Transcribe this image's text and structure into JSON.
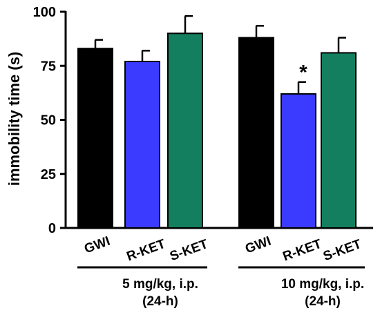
{
  "chart_data": {
    "type": "bar",
    "title": "",
    "xlabel": "",
    "ylabel": "immobility time (s)",
    "ylim": [
      0,
      100
    ],
    "yticks": [
      0,
      25,
      50,
      75,
      100
    ],
    "grid": false,
    "groups": [
      {
        "label_line1": "5 mg/kg, i.p.",
        "label_line2": "(24-h)",
        "bars": [
          {
            "category": "GWI",
            "value": 83,
            "error": 4,
            "color": "#000000",
            "annotation": ""
          },
          {
            "category": "R-KET",
            "value": 77,
            "error": 5,
            "color": "#3b3bff",
            "annotation": ""
          },
          {
            "category": "S-KET",
            "value": 90,
            "error": 8,
            "color": "#137f5f",
            "annotation": ""
          }
        ]
      },
      {
        "label_line1": "10 mg/kg, i.p.",
        "label_line2": "(24-h)",
        "bars": [
          {
            "category": "GWI",
            "value": 88,
            "error": 5.5,
            "color": "#000000",
            "annotation": ""
          },
          {
            "category": "R-KET",
            "value": 62,
            "error": 5.5,
            "color": "#3b3bff",
            "annotation": "*"
          },
          {
            "category": "S-KET",
            "value": 81,
            "error": 7,
            "color": "#137f5f",
            "annotation": ""
          }
        ]
      }
    ]
  }
}
